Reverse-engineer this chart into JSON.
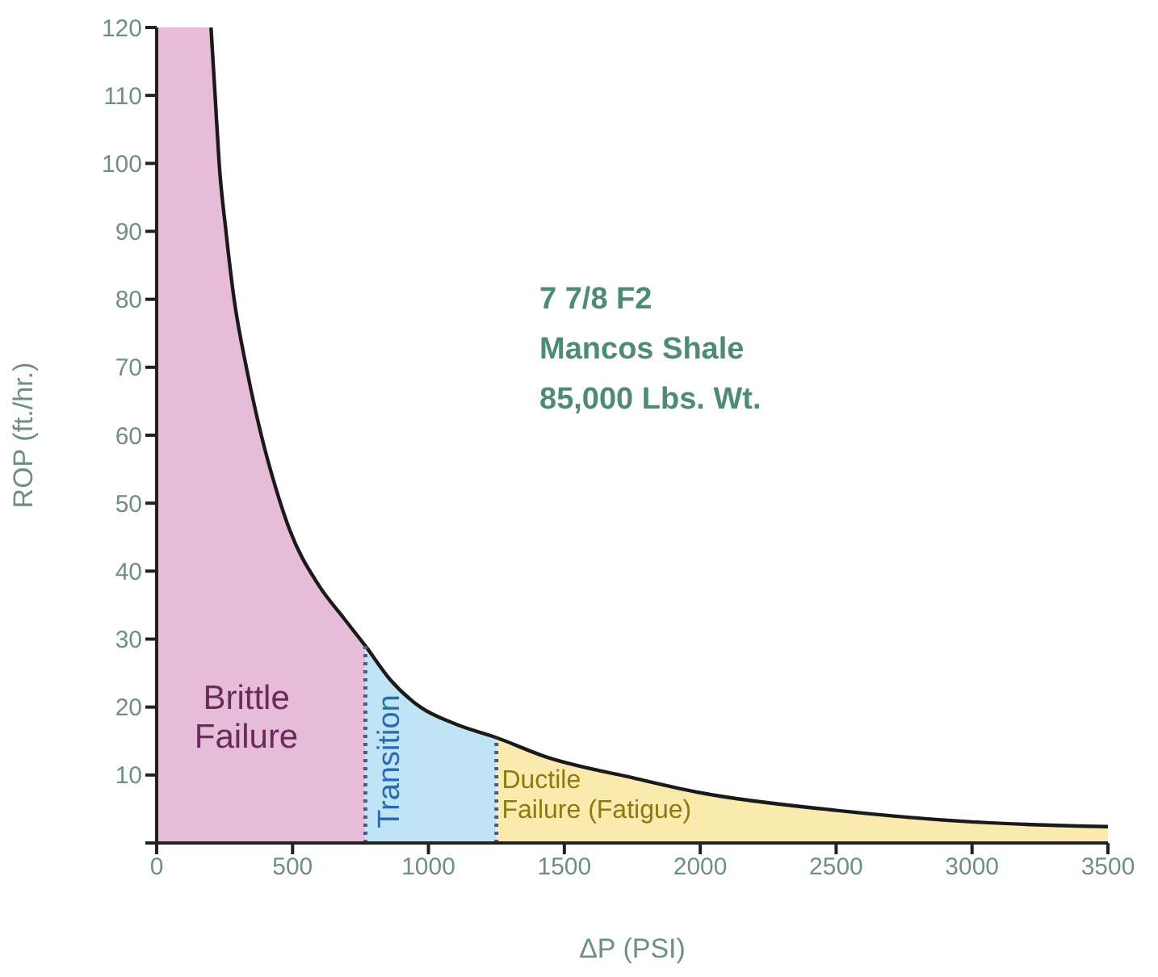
{
  "chart_data": {
    "type": "area",
    "xlabel": "ΔP (PSI)",
    "ylabel": "ROP (ft./hr.)",
    "xlim": [
      0,
      3500
    ],
    "xticks": [
      0,
      500,
      1000,
      1500,
      2000,
      2500,
      3000,
      3500
    ],
    "ylim": [
      0,
      120
    ],
    "yticks": [
      {
        "value": 0,
        "label": null
      },
      10,
      20,
      30,
      40,
      50,
      60,
      70,
      80,
      90,
      100,
      110,
      120
    ],
    "grid": false,
    "legend": false,
    "series": [
      {
        "color": "#e6bcd8",
        "x": [
          0,
          200,
          215,
          230,
          255,
          285,
          330,
          385,
          440,
          490,
          595,
          690,
          768
        ],
        "values": [
          120,
          120,
          110,
          100,
          90,
          80,
          70,
          60,
          52,
          46,
          38,
          33,
          29
        ]
      },
      {
        "color": "#bfe4f6",
        "x": [
          768,
          860,
          970,
          1100,
          1250
        ],
        "values": [
          29,
          24,
          20,
          17.5,
          15.5
        ]
      },
      {
        "color": "#fbeaae",
        "x": [
          1250,
          1430,
          1750,
          2000,
          2500,
          3000,
          3500
        ],
        "values": [
          15.5,
          12.7,
          9.6,
          7.4,
          4.8,
          3.1,
          2.4
        ]
      },
      {
        "type": "line",
        "color": "#1a1a1a",
        "x": [
          200,
          215,
          230,
          255,
          285,
          330,
          385,
          440,
          490,
          595,
          690,
          768,
          860,
          970,
          1100,
          1250,
          1430,
          1750,
          2000,
          2500,
          3000,
          3500
        ],
        "values": [
          120,
          110,
          100,
          90,
          80,
          70,
          60,
          52,
          46,
          38,
          33,
          29,
          24,
          20,
          17.5,
          15.5,
          12.7,
          9.6,
          7.4,
          4.8,
          3.1,
          2.4
        ]
      }
    ],
    "ref_lines": [
      {
        "axis": "x",
        "value": 768,
        "color": "#4a5a8a",
        "line_style": "dotted"
      },
      {
        "axis": "x",
        "value": 1250,
        "color": "#4a5a8a",
        "line_style": "dotted"
      }
    ],
    "annotations": [
      "Brittle Failure",
      "Transition",
      "Ductile Failure (Fatigue)",
      "7 7/8 F2",
      "Mancos Shale",
      "85,000 Lbs. Wt."
    ]
  }
}
